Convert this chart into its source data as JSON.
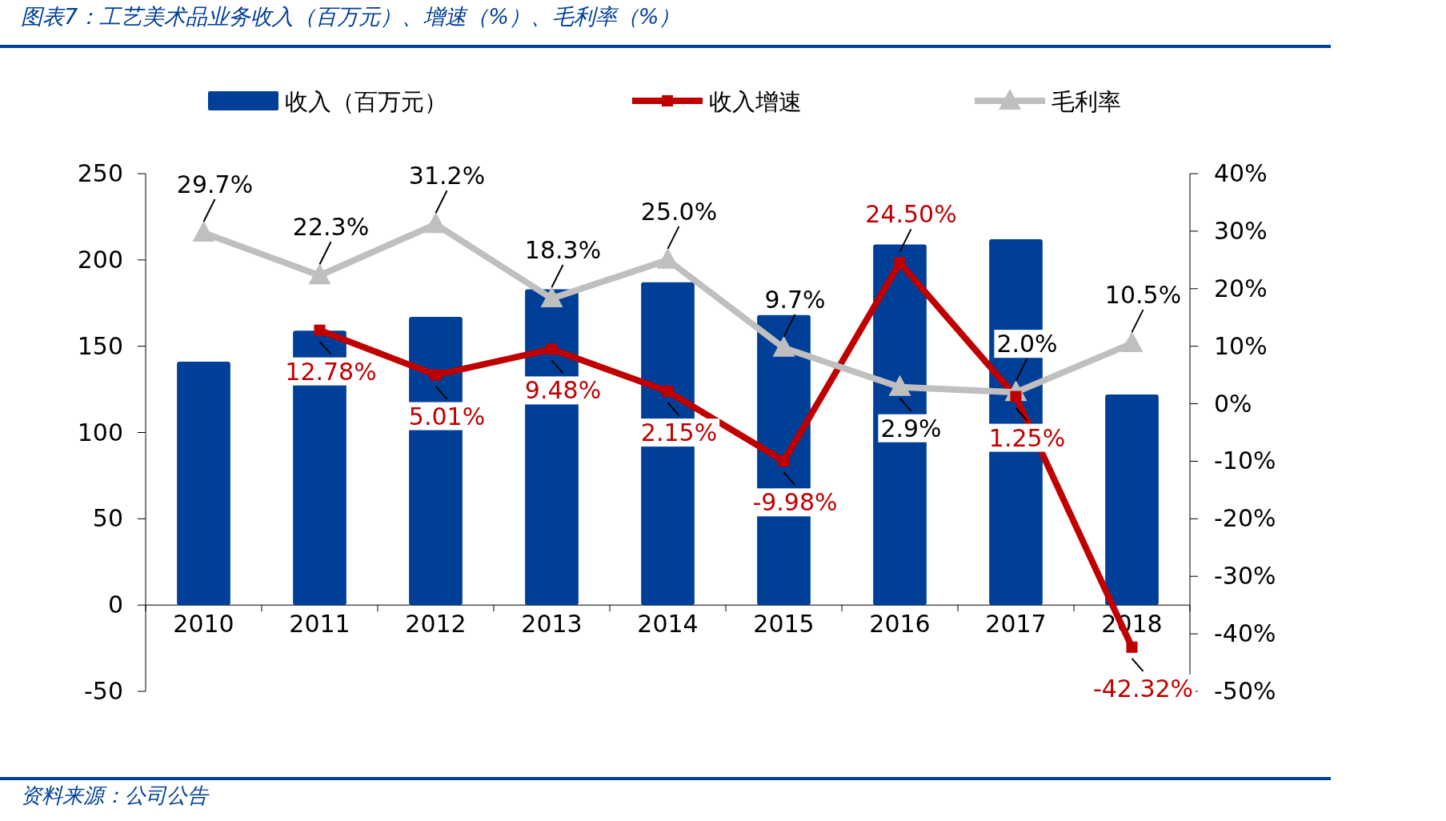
{
  "chart_data": {
    "type": "bar",
    "title": "图表7：工艺美术品业务收入（百万元）、增速（%）、毛利率（%）",
    "categories": [
      "2010",
      "2011",
      "2012",
      "2013",
      "2014",
      "2015",
      "2016",
      "2017",
      "2018"
    ],
    "series": [
      {
        "name": "收入（百万元）",
        "color": "#003f98",
        "values": [
          141,
          159,
          167,
          183,
          187,
          168,
          209,
          212,
          122
        ]
      },
      {
        "name": "收入增速",
        "type": "line",
        "axis": "y2",
        "color": "#c00000",
        "marker": "square",
        "values": [
          null,
          12.78,
          5.01,
          9.48,
          2.15,
          -9.98,
          24.5,
          1.25,
          -42.32
        ],
        "value_labels": [
          null,
          "12.78%",
          "5.01%",
          "9.48%",
          "2.15%",
          "-9.98%",
          "24.50%",
          "1.25%",
          "-42.32%"
        ]
      },
      {
        "name": "毛利率",
        "type": "line",
        "axis": "y2",
        "color": "#bfbfbf",
        "marker": "triangle",
        "values": [
          29.7,
          22.3,
          31.2,
          18.3,
          25.0,
          9.7,
          2.9,
          2.0,
          10.5
        ],
        "value_labels": [
          "29.7%",
          "22.3%",
          "31.2%",
          "18.3%",
          "25.0%",
          "9.7%",
          "2.9%",
          "2.0%",
          "10.5%"
        ]
      }
    ],
    "ylim": [
      -50,
      250
    ],
    "yticks": [
      -50,
      0,
      50,
      100,
      150,
      200,
      250
    ],
    "y2lim": [
      -50,
      40
    ],
    "y2ticks": [
      {
        "value": -50,
        "label": "-50%"
      },
      {
        "value": -40,
        "label": "-40%"
      },
      {
        "value": -30,
        "label": "-30%"
      },
      {
        "value": -20,
        "label": "-20%"
      },
      {
        "value": -10,
        "label": "-10%"
      },
      {
        "value": 0,
        "label": "0%"
      },
      {
        "value": 10,
        "label": "10%"
      },
      {
        "value": 20,
        "label": "20%"
      },
      {
        "value": 30,
        "label": "30%"
      },
      {
        "value": 40,
        "label": "40%"
      }
    ],
    "grid": false,
    "legend": "top",
    "annotations": [
      "资料来源：公司公告"
    ]
  }
}
